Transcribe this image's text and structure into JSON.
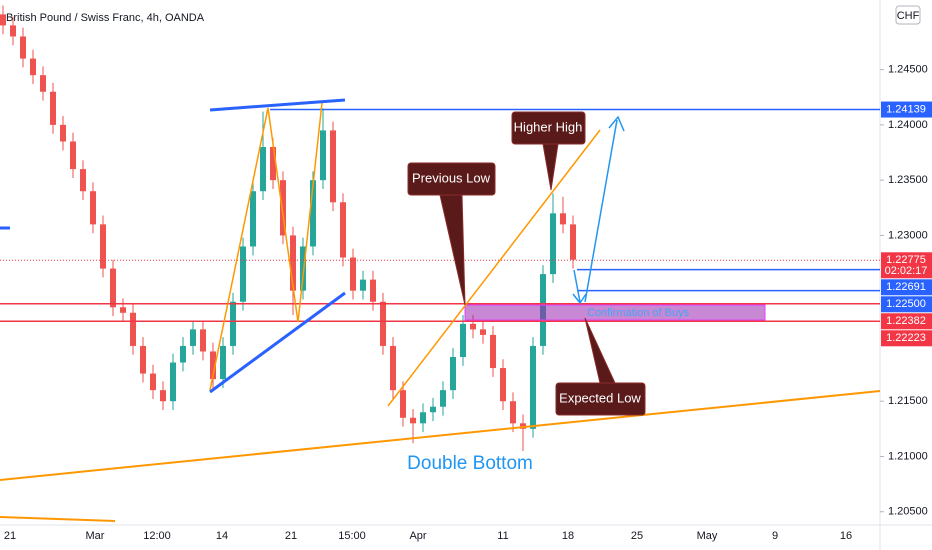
{
  "chart_data": {
    "type": "candlestick",
    "title": "British Pound / Swiss Franc, 4h, OANDA",
    "currency": "CHF",
    "candles": [
      [
        1.25,
        1.2508,
        1.2482,
        1.249
      ],
      [
        1.249,
        1.2498,
        1.2472,
        1.248
      ],
      [
        1.248,
        1.2488,
        1.2452,
        1.246
      ],
      [
        1.246,
        1.2468,
        1.2437,
        1.2445
      ],
      [
        1.2445,
        1.2453,
        1.2422,
        1.243
      ],
      [
        1.243,
        1.2438,
        1.2392,
        1.24
      ],
      [
        1.24,
        1.2408,
        1.2377,
        1.2385
      ],
      [
        1.2385,
        1.2393,
        1.2352,
        1.236
      ],
      [
        1.236,
        1.2368,
        1.2332,
        1.234
      ],
      [
        1.234,
        1.2348,
        1.2302,
        1.231
      ],
      [
        1.231,
        1.2318,
        1.2262,
        1.227
      ],
      [
        1.227,
        1.2278,
        1.2227,
        1.2235
      ],
      [
        1.2235,
        1.2243,
        1.2222,
        1.223
      ],
      [
        1.223,
        1.2238,
        1.2192,
        1.22
      ],
      [
        1.22,
        1.2208,
        1.2167,
        1.2175
      ],
      [
        1.2175,
        1.2183,
        1.2152,
        1.216
      ],
      [
        1.216,
        1.2168,
        1.2142,
        1.215
      ],
      [
        1.215,
        1.2193,
        1.2142,
        1.2185
      ],
      [
        1.2185,
        1.2208,
        1.2177,
        1.22
      ],
      [
        1.22,
        1.2223,
        1.2192,
        1.2215
      ],
      [
        1.2215,
        1.2223,
        1.2187,
        1.2195
      ],
      [
        1.2195,
        1.2203,
        1.2162,
        1.217
      ],
      [
        1.217,
        1.2208,
        1.2162,
        1.22
      ],
      [
        1.22,
        1.2248,
        1.2192,
        1.224
      ],
      [
        1.224,
        1.2298,
        1.2232,
        1.229
      ],
      [
        1.229,
        1.2348,
        1.2282,
        1.234
      ],
      [
        1.234,
        1.2412,
        1.2332,
        1.238
      ],
      [
        1.238,
        1.2388,
        1.2342,
        1.235
      ],
      [
        1.235,
        1.2358,
        1.2292,
        1.23
      ],
      [
        1.23,
        1.2308,
        1.2228,
        1.225
      ],
      [
        1.225,
        1.2298,
        1.2242,
        1.229
      ],
      [
        1.229,
        1.2358,
        1.2282,
        1.235
      ],
      [
        1.235,
        1.2415,
        1.2342,
        1.2395
      ],
      [
        1.2395,
        1.2403,
        1.2322,
        1.233
      ],
      [
        1.233,
        1.2338,
        1.2272,
        1.228
      ],
      [
        1.228,
        1.2288,
        1.2242,
        1.225
      ],
      [
        1.225,
        1.2268,
        1.2242,
        1.226
      ],
      [
        1.226,
        1.2268,
        1.2232,
        1.224
      ],
      [
        1.224,
        1.2248,
        1.2192,
        1.22
      ],
      [
        1.22,
        1.2208,
        1.2152,
        1.216
      ],
      [
        1.216,
        1.2168,
        1.2127,
        1.2135
      ],
      [
        1.2135,
        1.2143,
        1.2112,
        1.213
      ],
      [
        1.213,
        1.2148,
        1.2122,
        1.214
      ],
      [
        1.214,
        1.2153,
        1.2132,
        1.2145
      ],
      [
        1.2145,
        1.2168,
        1.2137,
        1.216
      ],
      [
        1.216,
        1.2198,
        1.2152,
        1.219
      ],
      [
        1.219,
        1.2228,
        1.2182,
        1.222
      ],
      [
        1.222,
        1.2228,
        1.2207,
        1.2215
      ],
      [
        1.2215,
        1.2223,
        1.2202,
        1.221
      ],
      [
        1.221,
        1.2218,
        1.2172,
        1.218
      ],
      [
        1.218,
        1.2188,
        1.2142,
        1.215
      ],
      [
        1.215,
        1.2158,
        1.2122,
        1.213
      ],
      [
        1.213,
        1.2138,
        1.2105,
        1.2125
      ],
      [
        1.2125,
        1.2208,
        1.2117,
        1.22
      ],
      [
        1.22,
        1.2273,
        1.2192,
        1.2265
      ],
      [
        1.2265,
        1.2338,
        1.2257,
        1.232
      ],
      [
        1.232,
        1.2335,
        1.2302,
        1.231
      ],
      [
        1.231,
        1.2318,
        1.227,
        1.2278
      ]
    ],
    "up_color": "#26a69a",
    "down_color": "#ef5350",
    "ylim": [
      1.2038,
      1.2513
    ],
    "yticks": [
      {
        "value": 1.245,
        "label": "1.24500"
      },
      {
        "value": 1.24,
        "label": "1.24000"
      },
      {
        "value": 1.235,
        "label": "1.23500"
      },
      {
        "value": 1.23,
        "label": "1.23000"
      },
      {
        "value": 1.215,
        "label": "1.21500"
      },
      {
        "value": 1.21,
        "label": "1.21000"
      },
      {
        "value": 1.205,
        "label": "1.20500"
      }
    ],
    "xlabels": [
      "21",
      "Mar",
      "12:00",
      "14",
      "21",
      "15:00",
      "Apr",
      "11",
      "18",
      "25",
      "May",
      "9",
      "16"
    ],
    "price_labels": [
      {
        "value": 1.24139,
        "label": "1.24139",
        "color": "#2962ff"
      },
      {
        "value": 1.22775,
        "label": "1.22775",
        "color": "#f23645"
      },
      {
        "value": 1.22691,
        "label": "1.22691",
        "color": "#2962ff"
      },
      {
        "value": 1.225,
        "label": "1.22500",
        "color": "#2962ff"
      },
      {
        "value": 1.22382,
        "label": "1.22382",
        "color": "#f23645"
      },
      {
        "value": 1.22223,
        "label": "1.22223",
        "color": "#f23645"
      }
    ],
    "countdown": "02:02:17",
    "annotations": {
      "higher_high": "Higher High",
      "previous_low": "Previous Low",
      "expected_low": "Expected Low",
      "confirmation": "Confirmation of Buys",
      "double_bottom": "Double Bottom"
    }
  }
}
